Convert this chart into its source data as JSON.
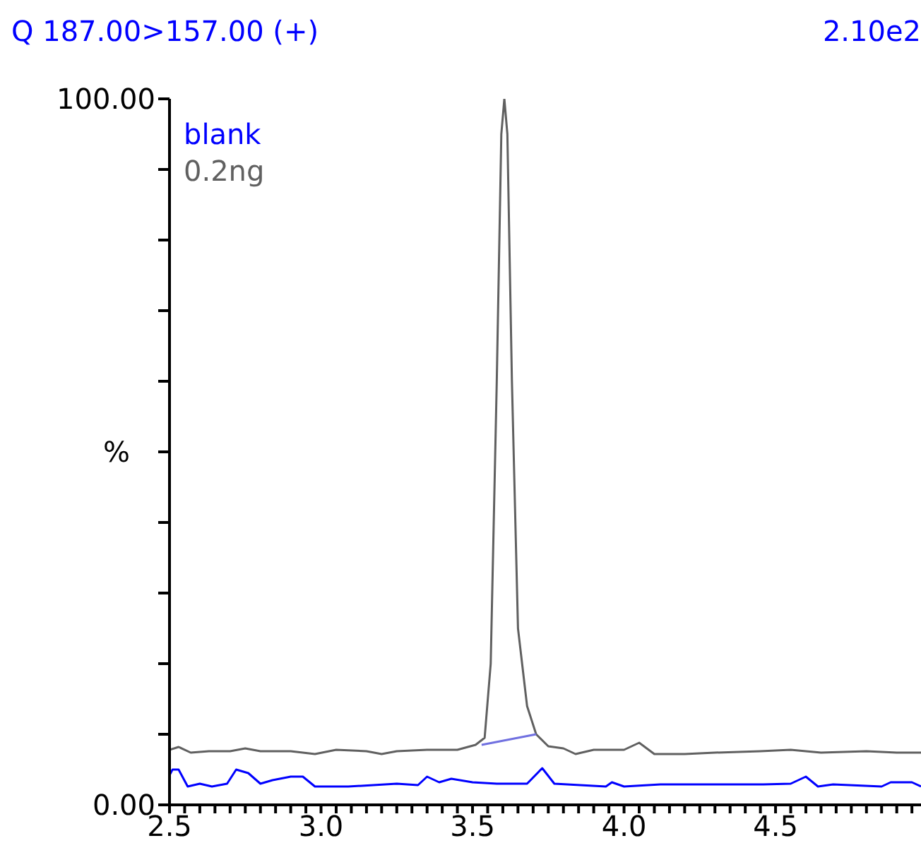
{
  "chart_data": {
    "type": "line",
    "title": "Q 187.00>157.00 (+)",
    "annotations": [
      "2.10e2"
    ],
    "ylabel": "%",
    "xlim": [
      2.5,
      4.98
    ],
    "ylim": [
      0,
      100
    ],
    "xticks": [
      {
        "value": 2.5,
        "label": "2.5"
      },
      {
        "value": 2.55,
        "label": null
      },
      {
        "value": 2.6,
        "label": null
      },
      {
        "value": 2.65,
        "label": null
      },
      {
        "value": 2.7,
        "label": null
      },
      {
        "value": 2.75,
        "label": null
      },
      {
        "value": 2.8,
        "label": null
      },
      {
        "value": 2.85,
        "label": null
      },
      {
        "value": 2.9,
        "label": null
      },
      {
        "value": 2.95,
        "label": null
      },
      {
        "value": 3.0,
        "label": "3.0"
      },
      {
        "value": 3.05,
        "label": null
      },
      {
        "value": 3.1,
        "label": null
      },
      {
        "value": 3.15,
        "label": null
      },
      {
        "value": 3.2,
        "label": null
      },
      {
        "value": 3.25,
        "label": null
      },
      {
        "value": 3.3,
        "label": null
      },
      {
        "value": 3.35,
        "label": null
      },
      {
        "value": 3.4,
        "label": null
      },
      {
        "value": 3.45,
        "label": null
      },
      {
        "value": 3.5,
        "label": "3.5"
      },
      {
        "value": 3.55,
        "label": null
      },
      {
        "value": 3.6,
        "label": null
      },
      {
        "value": 3.65,
        "label": null
      },
      {
        "value": 3.7,
        "label": null
      },
      {
        "value": 3.75,
        "label": null
      },
      {
        "value": 3.8,
        "label": null
      },
      {
        "value": 3.85,
        "label": null
      },
      {
        "value": 3.9,
        "label": null
      },
      {
        "value": 3.95,
        "label": null
      },
      {
        "value": 4.0,
        "label": "4.0"
      },
      {
        "value": 4.05,
        "label": null
      },
      {
        "value": 4.1,
        "label": null
      },
      {
        "value": 4.15,
        "label": null
      },
      {
        "value": 4.2,
        "label": null
      },
      {
        "value": 4.25,
        "label": null
      },
      {
        "value": 4.3,
        "label": null
      },
      {
        "value": 4.35,
        "label": null
      },
      {
        "value": 4.4,
        "label": null
      },
      {
        "value": 4.45,
        "label": null
      },
      {
        "value": 4.5,
        "label": "4.5"
      },
      {
        "value": 4.55,
        "label": null
      },
      {
        "value": 4.6,
        "label": null
      },
      {
        "value": 4.65,
        "label": null
      },
      {
        "value": 4.7,
        "label": null
      },
      {
        "value": 4.75,
        "label": null
      },
      {
        "value": 4.8,
        "label": null
      },
      {
        "value": 4.85,
        "label": null
      },
      {
        "value": 4.9,
        "label": null
      },
      {
        "value": 4.95,
        "label": null
      }
    ],
    "yticks": [
      {
        "value": 0,
        "label": "0.00"
      },
      {
        "value": 10,
        "label": null
      },
      {
        "value": 20,
        "label": null
      },
      {
        "value": 30,
        "label": null
      },
      {
        "value": 40,
        "label": null
      },
      {
        "value": 50,
        "label": null
      },
      {
        "value": 60,
        "label": null
      },
      {
        "value": 70,
        "label": null
      },
      {
        "value": 80,
        "label": null
      },
      {
        "value": 90,
        "label": null
      },
      {
        "value": 100,
        "label": "100.00"
      }
    ],
    "grid": false,
    "marker": "none",
    "line_style": "solid",
    "series": [
      {
        "name": "blank",
        "color": "#0000ff",
        "x": [
          2.5,
          2.51,
          2.53,
          2.55,
          2.56,
          2.6,
          2.64,
          2.69,
          2.72,
          2.76,
          2.8,
          2.84,
          2.9,
          2.94,
          2.98,
          3.09,
          3.25,
          3.32,
          3.35,
          3.39,
          3.43,
          3.5,
          3.58,
          3.68,
          3.73,
          3.77,
          3.94,
          3.96,
          4.0,
          4.12,
          4.26,
          4.46,
          4.55,
          4.6,
          4.64,
          4.69,
          4.85,
          4.88,
          4.95,
          4.98
        ],
        "values": [
          4.2,
          5.0,
          5.0,
          3.4,
          2.6,
          3.0,
          2.6,
          3.0,
          5.0,
          4.5,
          3.0,
          3.5,
          4.0,
          4.0,
          2.6,
          2.6,
          3.0,
          2.8,
          4.0,
          3.2,
          3.7,
          3.2,
          3.0,
          3.0,
          5.2,
          3.0,
          2.6,
          3.2,
          2.6,
          2.9,
          2.9,
          2.9,
          3.0,
          4.0,
          2.6,
          2.9,
          2.6,
          3.2,
          3.2,
          2.6
        ]
      },
      {
        "name": "0.2ng",
        "color": "#606060",
        "x": [
          2.5,
          2.53,
          2.57,
          2.63,
          2.7,
          2.75,
          2.8,
          2.9,
          2.98,
          3.05,
          3.15,
          3.2,
          3.25,
          3.35,
          3.45,
          3.51,
          3.54,
          3.56,
          3.58,
          3.595,
          3.605,
          3.615,
          3.63,
          3.65,
          3.68,
          3.71,
          3.75,
          3.8,
          3.84,
          3.9,
          4.0,
          4.05,
          4.1,
          4.2,
          4.3,
          4.45,
          4.55,
          4.65,
          4.8,
          4.9,
          4.98
        ],
        "values": [
          7.8,
          8.2,
          7.4,
          7.6,
          7.6,
          8.0,
          7.6,
          7.6,
          7.2,
          7.8,
          7.6,
          7.2,
          7.6,
          7.8,
          7.8,
          8.5,
          9.5,
          20,
          60,
          95,
          100,
          95,
          60,
          25,
          14,
          10,
          8.3,
          8.0,
          7.2,
          7.8,
          7.8,
          8.8,
          7.2,
          7.2,
          7.4,
          7.6,
          7.8,
          7.4,
          7.6,
          7.4,
          7.4
        ]
      },
      {
        "color": "#7070e0",
        "x": [
          3.53,
          3.71
        ],
        "values": [
          8.5,
          10.0
        ]
      }
    ]
  }
}
